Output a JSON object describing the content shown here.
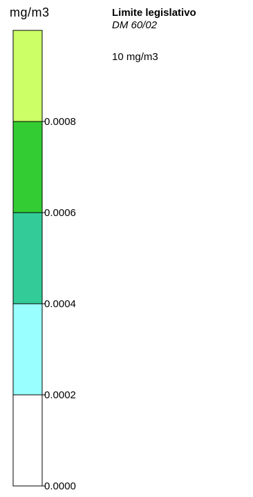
{
  "unit": "mg/m3",
  "info": {
    "heading": "Limite legislativo",
    "subheading": "DM 60/02",
    "limit_value": "10 mg/m3"
  },
  "chart_data": {
    "type": "legend",
    "unit": "mg/m3",
    "ticks": [
      "0.0008",
      "0.0006",
      "0.0004",
      "0.0002",
      "0.0000"
    ],
    "bands": [
      {
        "from": null,
        "to": 0.0008,
        "color": "#ccff66"
      },
      {
        "from": 0.0008,
        "to": 0.0006,
        "color": "#33cc33"
      },
      {
        "from": 0.0006,
        "to": 0.0004,
        "color": "#33cc99"
      },
      {
        "from": 0.0004,
        "to": 0.0002,
        "color": "#99ffff"
      },
      {
        "from": 0.0002,
        "to": 0.0,
        "color": "#ffffff"
      }
    ]
  }
}
